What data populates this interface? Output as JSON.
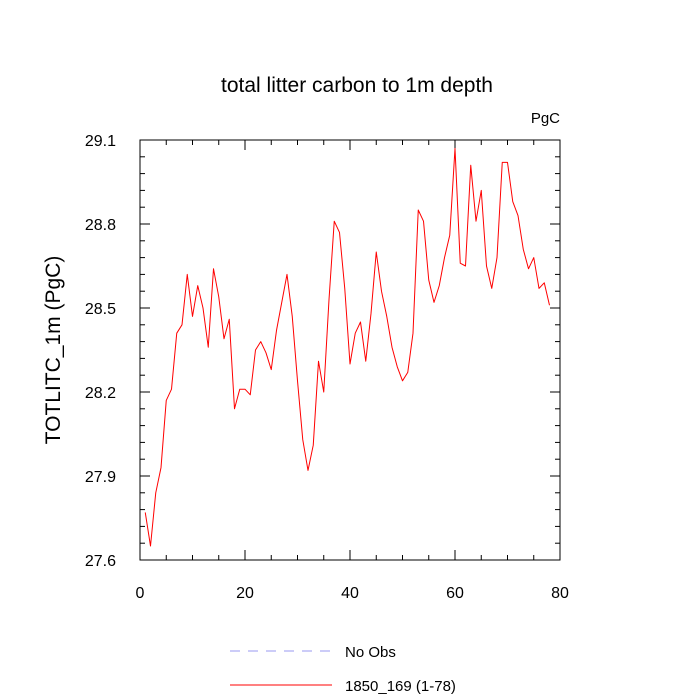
{
  "chart_data": {
    "type": "line",
    "title": "total litter carbon to 1m depth",
    "units": "PgC",
    "ylabel": "TOTLITC_1m  (PgC)",
    "xlim": [
      0,
      80
    ],
    "ylim": [
      27.6,
      29.1
    ],
    "xticks": [
      0,
      20,
      40,
      60,
      80
    ],
    "yticks": [
      27.6,
      27.9,
      28.2,
      28.5,
      28.8,
      29.1
    ],
    "x_minor_step": 5,
    "y_minor_step": 0.06,
    "grid": false,
    "legend_placement": "bottom-center",
    "legend": [
      {
        "label": "No Obs",
        "color": "#9a9af0",
        "style": "dashed"
      },
      {
        "label": "1850_169 (1-78)",
        "color": "#ff0000",
        "style": "solid"
      }
    ],
    "series": [
      {
        "name": "1850_169 (1-78)",
        "color": "#ff0000",
        "x": [
          1,
          2,
          3,
          4,
          5,
          6,
          7,
          8,
          9,
          10,
          11,
          12,
          13,
          14,
          15,
          16,
          17,
          18,
          19,
          20,
          21,
          22,
          23,
          24,
          25,
          26,
          27,
          28,
          29,
          30,
          31,
          32,
          33,
          34,
          35,
          36,
          37,
          38,
          39,
          40,
          41,
          42,
          43,
          44,
          45,
          46,
          47,
          48,
          49,
          50,
          51,
          52,
          53,
          54,
          55,
          56,
          57,
          58,
          59,
          60,
          61,
          62,
          63,
          64,
          65,
          66,
          67,
          68,
          69,
          70,
          71,
          72,
          73,
          74,
          75,
          76,
          77,
          78
        ],
        "y": [
          27.77,
          27.65,
          27.84,
          27.93,
          28.17,
          28.21,
          28.41,
          28.44,
          28.62,
          28.47,
          28.58,
          28.5,
          28.36,
          28.64,
          28.54,
          28.39,
          28.46,
          28.14,
          28.21,
          28.21,
          28.19,
          28.35,
          28.38,
          28.34,
          28.28,
          28.42,
          28.52,
          28.62,
          28.47,
          28.24,
          28.03,
          27.92,
          28.01,
          28.31,
          28.2,
          28.53,
          28.81,
          28.77,
          28.57,
          28.3,
          28.41,
          28.45,
          28.31,
          28.48,
          28.7,
          28.56,
          28.47,
          28.36,
          28.29,
          28.24,
          28.27,
          28.41,
          28.85,
          28.81,
          28.6,
          28.52,
          28.58,
          28.68,
          28.76,
          29.07,
          28.66,
          28.65,
          29.01,
          28.81,
          28.92,
          28.65,
          28.57,
          28.68,
          29.02,
          29.02,
          28.88,
          28.83,
          28.71,
          28.64,
          28.68,
          28.57,
          28.59,
          28.51
        ]
      }
    ]
  }
}
